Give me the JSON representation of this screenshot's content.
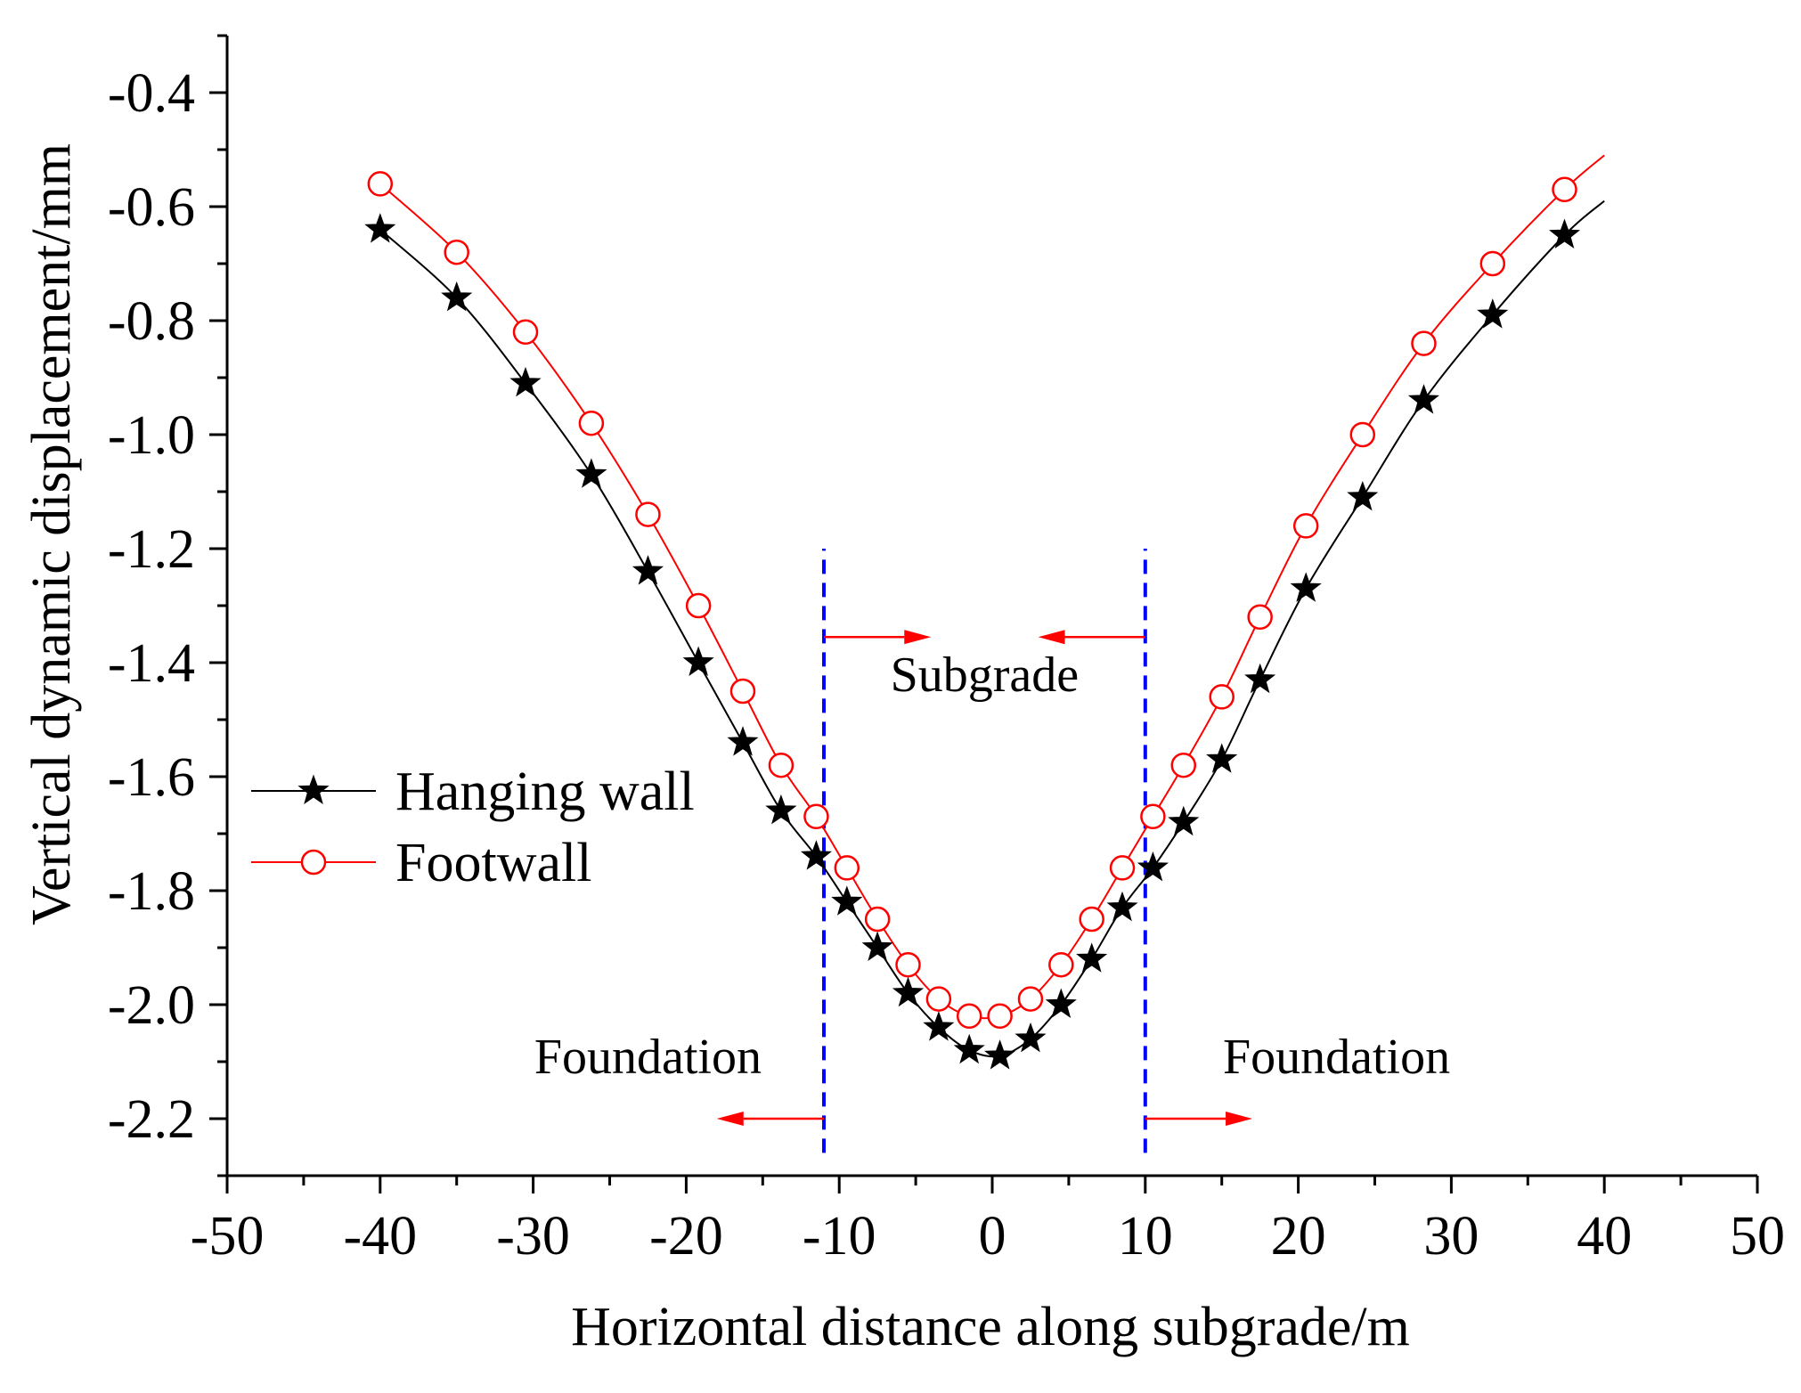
{
  "chart_data": {
    "type": "line",
    "title": "",
    "xlabel": "Horizontal distance along subgrade/m",
    "ylabel": "Vertical dynamic displacement/mm",
    "xlim": [
      -50,
      50
    ],
    "ylim": [
      -2.3,
      -0.3
    ],
    "x_ticks": [
      -50,
      -40,
      -30,
      -20,
      -10,
      0,
      10,
      20,
      30,
      40,
      50
    ],
    "x_tick_labels": [
      "-50",
      "-40",
      "-30",
      "-20",
      "-10",
      "0",
      "10",
      "20",
      "30",
      "40",
      "50"
    ],
    "y_ticks": [
      -2.2,
      -2.0,
      -1.8,
      -1.6,
      -1.4,
      -1.2,
      -1.0,
      -0.8,
      -0.6,
      -0.4
    ],
    "y_tick_labels": [
      "-2.2",
      "-2.0",
      "-1.8",
      "-1.6",
      "-1.4",
      "-1.2",
      "-1.0",
      "-0.8",
      "-0.6",
      "-0.4"
    ],
    "grid": false,
    "legend_position": "middle-left",
    "series": [
      {
        "name": "Hanging wall",
        "color": "#000000",
        "marker": "star",
        "marker_fill": "#000000",
        "x": [
          -40,
          -35,
          -30.5,
          -26.2,
          -22.5,
          -19.2,
          -16.3,
          -13.8,
          -11.5,
          -9.5,
          -7.5,
          -5.5,
          -3.5,
          -1.5,
          0.5,
          2.5,
          4.5,
          6.5,
          8.5,
          10.5,
          12.5,
          15,
          17.5,
          20.5,
          24.2,
          28.2,
          32.7,
          37.4
        ],
        "y": [
          -0.64,
          -0.76,
          -0.91,
          -1.07,
          -1.24,
          -1.4,
          -1.54,
          -1.66,
          -1.74,
          -1.82,
          -1.9,
          -1.98,
          -2.04,
          -2.08,
          -2.09,
          -2.06,
          -2.0,
          -1.92,
          -1.83,
          -1.76,
          -1.68,
          -1.57,
          -1.43,
          -1.27,
          -1.11,
          -0.94,
          -0.79,
          -0.65
        ],
        "curve_x": [
          -40,
          -35,
          -30.5,
          -26.2,
          -22.5,
          -19.2,
          -16.3,
          -13.8,
          -11.5,
          -9.5,
          -7.5,
          -5.5,
          -3.5,
          -1.5,
          0.5,
          2.5,
          4.5,
          6.5,
          8.5,
          10.5,
          12.5,
          15,
          17.5,
          20.5,
          24.2,
          28.2,
          32.7,
          37.4,
          40
        ],
        "curve_y": [
          -0.64,
          -0.76,
          -0.91,
          -1.07,
          -1.24,
          -1.4,
          -1.54,
          -1.66,
          -1.74,
          -1.82,
          -1.9,
          -1.98,
          -2.04,
          -2.08,
          -2.09,
          -2.06,
          -2.0,
          -1.92,
          -1.83,
          -1.76,
          -1.68,
          -1.57,
          -1.43,
          -1.27,
          -1.11,
          -0.94,
          -0.79,
          -0.65,
          -0.59
        ]
      },
      {
        "name": "Footwall",
        "color": "#ff0000",
        "marker": "circle",
        "marker_fill": "#ffffff",
        "x": [
          -40,
          -35,
          -30.5,
          -26.2,
          -22.5,
          -19.2,
          -16.3,
          -13.8,
          -11.5,
          -9.5,
          -7.5,
          -5.5,
          -3.5,
          -1.5,
          0.5,
          2.5,
          4.5,
          6.5,
          8.5,
          10.5,
          12.5,
          15,
          17.5,
          20.5,
          24.2,
          28.2,
          32.7,
          37.4
        ],
        "y": [
          -0.56,
          -0.68,
          -0.82,
          -0.98,
          -1.14,
          -1.3,
          -1.45,
          -1.58,
          -1.67,
          -1.76,
          -1.85,
          -1.93,
          -1.99,
          -2.02,
          -2.02,
          -1.99,
          -1.93,
          -1.85,
          -1.76,
          -1.67,
          -1.58,
          -1.46,
          -1.32,
          -1.16,
          -1.0,
          -0.84,
          -0.7,
          -0.57
        ],
        "curve_x": [
          -40,
          -35,
          -30.5,
          -26.2,
          -22.5,
          -19.2,
          -16.3,
          -13.8,
          -11.5,
          -9.5,
          -7.5,
          -5.5,
          -3.5,
          -1.5,
          0.5,
          2.5,
          4.5,
          6.5,
          8.5,
          10.5,
          12.5,
          15,
          17.5,
          20.5,
          24.2,
          28.2,
          32.7,
          37.4,
          40
        ],
        "curve_y": [
          -0.56,
          -0.68,
          -0.82,
          -0.98,
          -1.14,
          -1.3,
          -1.45,
          -1.58,
          -1.67,
          -1.76,
          -1.85,
          -1.93,
          -1.99,
          -2.02,
          -2.02,
          -1.99,
          -1.93,
          -1.85,
          -1.76,
          -1.67,
          -1.58,
          -1.46,
          -1.32,
          -1.16,
          -1.0,
          -0.84,
          -0.7,
          -0.57,
          -0.51
        ]
      }
    ],
    "vertical_lines": [
      {
        "x": -11,
        "y_from": -2.26,
        "y_to": -1.2,
        "color": "#0000ff",
        "style": "dashed"
      },
      {
        "x": 10,
        "y_from": -2.26,
        "y_to": -1.2,
        "color": "#0000ff",
        "style": "dashed"
      }
    ],
    "annotations": [
      {
        "text": "Subgrade",
        "x": -0.5,
        "y": -1.45
      },
      {
        "text": "Foundation",
        "x": -22.5,
        "y": -2.12
      },
      {
        "text": "Foundation",
        "x": 22.5,
        "y": -2.12
      }
    ],
    "arrows": [
      {
        "x_from": -11,
        "x_to": -4,
        "y": -1.355,
        "color": "#ff0000"
      },
      {
        "x_from": 10,
        "x_to": 3,
        "y": -1.355,
        "color": "#ff0000"
      },
      {
        "x_from": -11,
        "x_to": -18,
        "y": -2.2,
        "color": "#ff0000"
      },
      {
        "x_from": 10,
        "x_to": 17,
        "y": -2.2,
        "color": "#ff0000"
      }
    ]
  }
}
